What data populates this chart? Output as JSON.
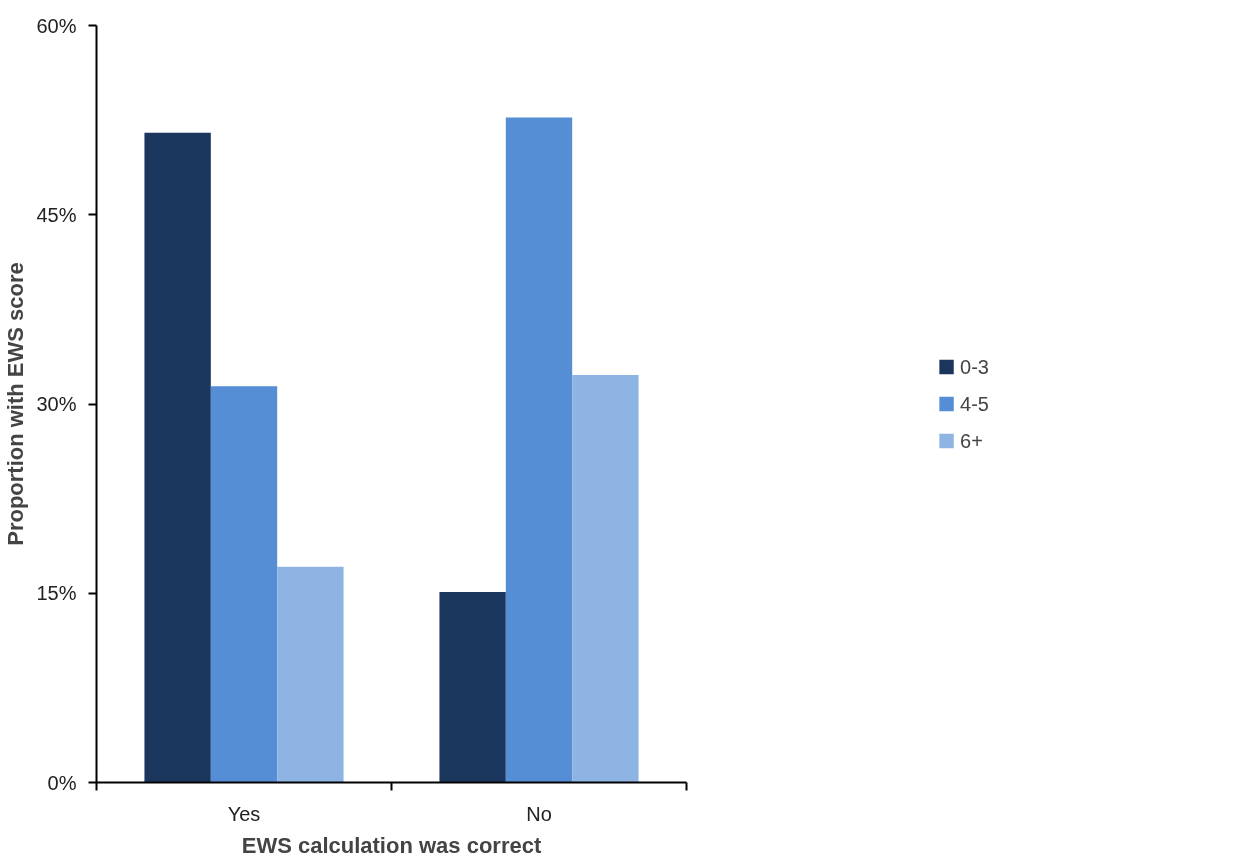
{
  "chart_data": {
    "type": "bar",
    "xlabel": "EWS calculation was correct",
    "ylabel": "Proportion with EWS score",
    "categories": [
      "Yes",
      "No"
    ],
    "series": [
      {
        "name": "0-3",
        "color": "#1b365d",
        "values": [
          51.5,
          15.1
        ]
      },
      {
        "name": "4-5",
        "color": "#558ed5",
        "values": [
          31.4,
          52.7
        ]
      },
      {
        "name": "6+",
        "color": "#8eb4e3",
        "values": [
          17.1,
          32.3
        ]
      }
    ],
    "ylim": [
      0,
      60
    ],
    "yticks": [
      {
        "value": 0,
        "label": "0%"
      },
      {
        "value": 15,
        "label": "15%"
      },
      {
        "value": 30,
        "label": "30%"
      },
      {
        "value": 45,
        "label": "45%"
      },
      {
        "value": 60,
        "label": "60%"
      }
    ],
    "grid": false,
    "legend": "right"
  }
}
